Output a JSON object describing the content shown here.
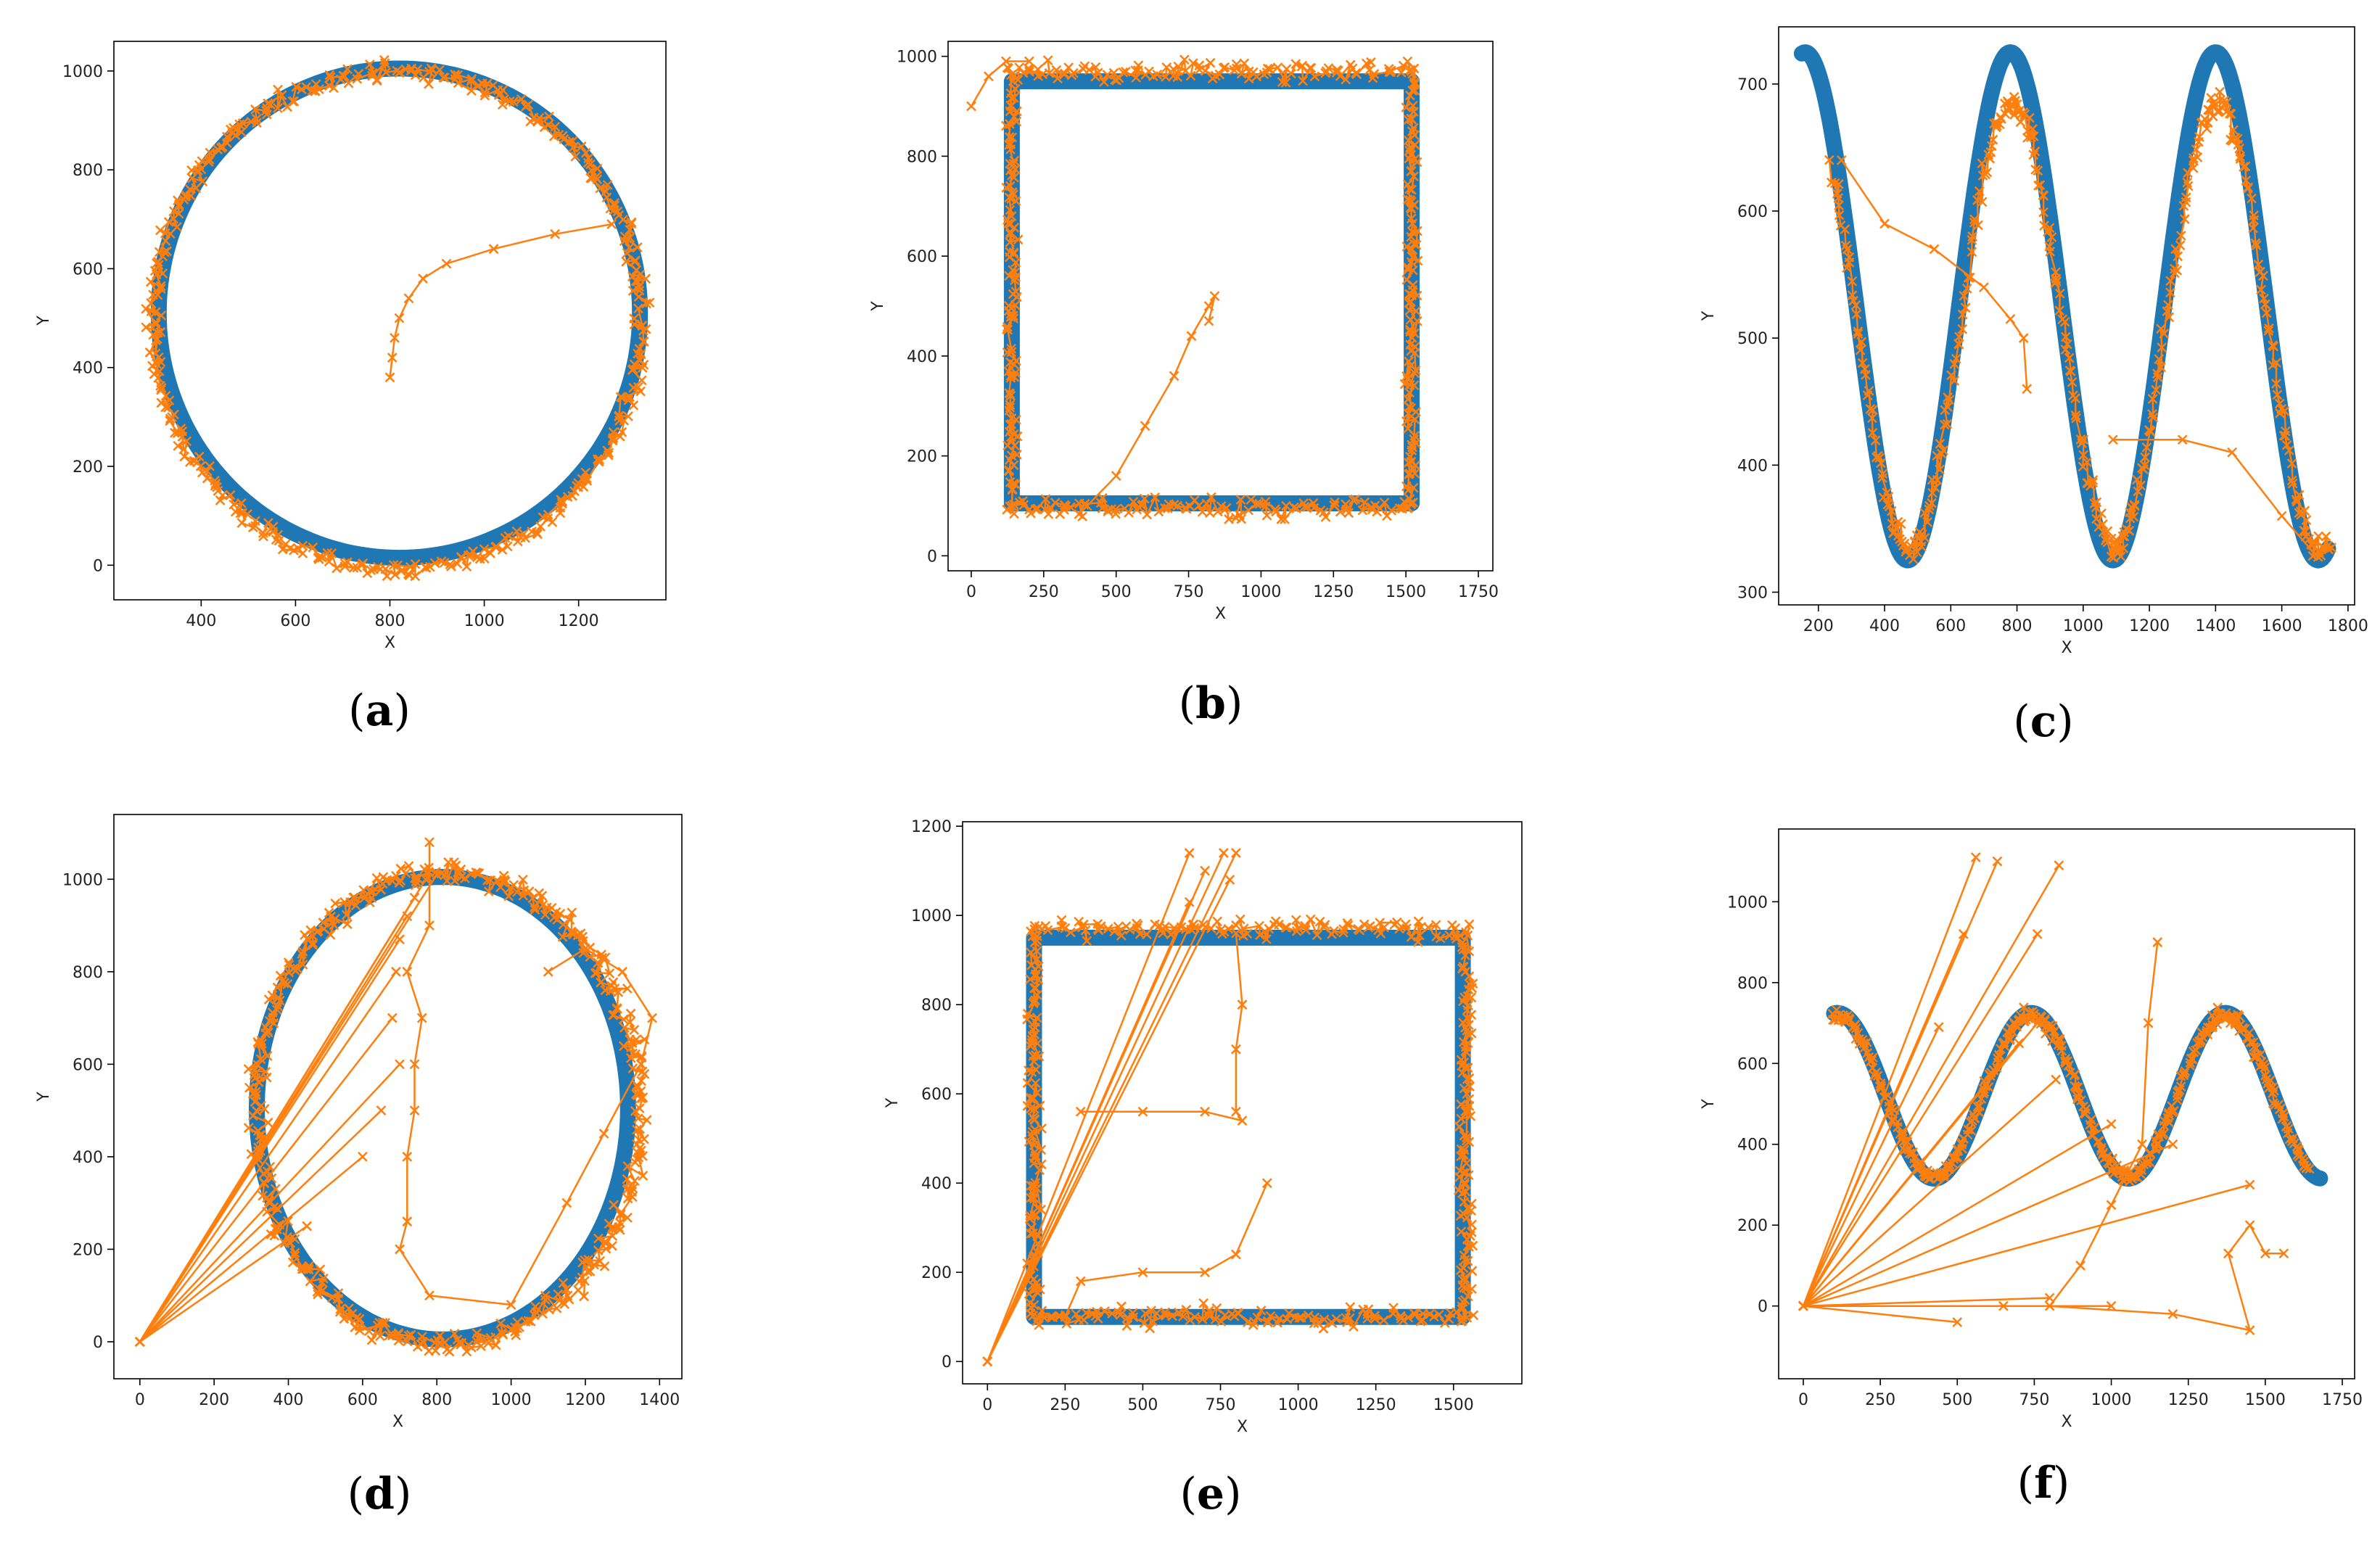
{
  "chart_data": [
    {
      "id": "a",
      "type": "scatter",
      "caption": "a",
      "xlabel": "X",
      "ylabel": "Y",
      "xlim": [
        215,
        1385
      ],
      "ylim": [
        -70,
        1060
      ],
      "xticks": [
        400,
        600,
        800,
        1000,
        1200
      ],
      "yticks": [
        0,
        200,
        400,
        600,
        800,
        1000
      ],
      "grid": false,
      "reference": {
        "shape": "ellipse",
        "center": [
          820,
          510
        ],
        "rx": 510,
        "ry": 495
      },
      "estimate": {
        "shape": "noisy-ellipse",
        "center": [
          815,
          495
        ],
        "rx": 520,
        "ry": 505,
        "noise": 22,
        "extra_path": [
          [
            1270,
            690
          ],
          [
            1150,
            670
          ],
          [
            1020,
            640
          ],
          [
            920,
            610
          ],
          [
            870,
            580
          ],
          [
            840,
            540
          ],
          [
            820,
            500
          ],
          [
            810,
            460
          ],
          [
            805,
            420
          ],
          [
            800,
            380
          ]
        ]
      }
    },
    {
      "id": "b",
      "type": "scatter",
      "caption": "b",
      "xlabel": "X",
      "ylabel": "Y",
      "xlim": [
        -80,
        1800
      ],
      "ylim": [
        -30,
        1030
      ],
      "xticks": [
        0,
        250,
        500,
        750,
        1000,
        1250,
        1500,
        1750
      ],
      "yticks": [
        0,
        200,
        400,
        600,
        800,
        1000
      ],
      "grid": false,
      "reference": {
        "shape": "rectangle",
        "x0": 140,
        "x1": 1520,
        "y0": 105,
        "y1": 950
      },
      "estimate": {
        "shape": "noisy-rectangle",
        "x0": 140,
        "x1": 1520,
        "y0": 95,
        "y1": 970,
        "noise": 25,
        "extra_path": [
          [
            0,
            900
          ],
          [
            60,
            960
          ],
          [
            120,
            990
          ],
          [
            200,
            990
          ]
        ],
        "inner_path": [
          [
            400,
            100
          ],
          [
            500,
            160
          ],
          [
            600,
            260
          ],
          [
            700,
            360
          ],
          [
            760,
            440
          ],
          [
            820,
            500
          ],
          [
            840,
            520
          ],
          [
            820,
            470
          ]
        ]
      }
    },
    {
      "id": "c",
      "type": "scatter",
      "caption": "c",
      "xlabel": "X",
      "ylabel": "Y",
      "xlim": [
        80,
        1820
      ],
      "ylim": [
        290,
        745
      ],
      "xticks": [
        200,
        400,
        600,
        800,
        1000,
        1200,
        1400,
        1600,
        1800
      ],
      "yticks": [
        300,
        400,
        500,
        600,
        700
      ],
      "grid": false,
      "reference": {
        "shape": "cosine",
        "xmin": 150,
        "xmax": 1740,
        "mid": 525,
        "amp": 200,
        "period": 620,
        "phase_x": 160
      },
      "estimate": {
        "shape": "noisy-cosine",
        "xmin": 240,
        "xmax": 1740,
        "mid": 510,
        "amp": 175,
        "period": 620,
        "phase_x": 165,
        "noise": 14,
        "extra_path": [
          [
            270,
            640
          ],
          [
            400,
            590
          ],
          [
            550,
            570
          ],
          [
            700,
            540
          ],
          [
            780,
            515
          ],
          [
            820,
            500
          ],
          [
            830,
            460
          ]
        ],
        "extra_path2": [
          [
            1090,
            420
          ],
          [
            1300,
            420
          ],
          [
            1450,
            410
          ],
          [
            1600,
            360
          ],
          [
            1700,
            330
          ],
          [
            1750,
            335
          ]
        ]
      }
    },
    {
      "id": "d",
      "type": "scatter",
      "caption": "d",
      "xlabel": "X",
      "ylabel": "Y",
      "xlim": [
        -70,
        1460
      ],
      "ylim": [
        -80,
        1140
      ],
      "xticks": [
        0,
        200,
        400,
        600,
        800,
        1000,
        1200,
        1400
      ],
      "yticks": [
        0,
        200,
        400,
        600,
        800,
        1000
      ],
      "grid": false,
      "reference": {
        "shape": "ellipse",
        "center": [
          815,
          505
        ],
        "rx": 500,
        "ry": 500
      },
      "estimate": {
        "shape": "noisy-ellipse",
        "center": [
          830,
          505
        ],
        "rx": 520,
        "ry": 510,
        "noise": 30,
        "extra_path": [
          [
            780,
            1080
          ],
          [
            780,
            900
          ],
          [
            720,
            800
          ],
          [
            760,
            700
          ],
          [
            740,
            600
          ],
          [
            740,
            500
          ],
          [
            720,
            400
          ],
          [
            720,
            260
          ],
          [
            700,
            200
          ],
          [
            780,
            100
          ],
          [
            1000,
            80
          ],
          [
            1150,
            300
          ],
          [
            1250,
            450
          ],
          [
            1350,
            600
          ],
          [
            1380,
            700
          ],
          [
            1300,
            800
          ],
          [
            1200,
            850
          ],
          [
            1100,
            800
          ]
        ],
        "fan_origin": [
          0,
          0
        ],
        "fan_targets": [
          [
            800,
            1010
          ],
          [
            770,
            1000
          ],
          [
            740,
            960
          ],
          [
            720,
            920
          ],
          [
            700,
            870
          ],
          [
            690,
            800
          ],
          [
            680,
            700
          ],
          [
            700,
            600
          ],
          [
            650,
            500
          ],
          [
            600,
            400
          ],
          [
            450,
            250
          ]
        ]
      }
    },
    {
      "id": "e",
      "type": "scatter",
      "caption": "e",
      "xlabel": "X",
      "ylabel": "Y",
      "xlim": [
        -80,
        1720
      ],
      "ylim": [
        -50,
        1210
      ],
      "xticks": [
        0,
        250,
        500,
        750,
        1000,
        1250,
        1500
      ],
      "yticks": [
        0,
        200,
        400,
        600,
        800,
        1000,
        1200
      ],
      "grid": false,
      "reference": {
        "shape": "rectangle",
        "x0": 150,
        "x1": 1530,
        "y0": 100,
        "y1": 950
      },
      "estimate": {
        "shape": "noisy-rectangle",
        "x0": 150,
        "x1": 1540,
        "y0": 100,
        "y1": 970,
        "noise": 28,
        "extra_path": [
          [
            800,
            960
          ],
          [
            820,
            800
          ],
          [
            800,
            700
          ],
          [
            800,
            560
          ],
          [
            820,
            540
          ],
          [
            700,
            560
          ],
          [
            500,
            560
          ],
          [
            300,
            560
          ]
        ],
        "inner_path": [
          [
            250,
            100
          ],
          [
            300,
            180
          ],
          [
            500,
            200
          ],
          [
            700,
            200
          ],
          [
            800,
            240
          ],
          [
            900,
            400
          ]
        ],
        "fan_origin": [
          0,
          0
        ],
        "fan_targets": [
          [
            650,
            1140
          ],
          [
            700,
            1100
          ],
          [
            760,
            1140
          ],
          [
            800,
            1140
          ],
          [
            780,
            1080
          ],
          [
            650,
            1030
          ]
        ]
      }
    },
    {
      "id": "f",
      "type": "scatter",
      "caption": "f",
      "xlabel": "X",
      "ylabel": "Y",
      "xlim": [
        -80,
        1790
      ],
      "ylim": [
        -180,
        1180
      ],
      "xticks": [
        0,
        250,
        500,
        750,
        1000,
        1250,
        1500,
        1750
      ],
      "yticks": [
        0,
        200,
        400,
        600,
        800,
        1000
      ],
      "grid": false,
      "reference": {
        "shape": "cosine",
        "xmin": 100,
        "xmax": 1680,
        "mid": 520,
        "amp": 205,
        "period": 630,
        "phase_x": 110
      },
      "estimate": {
        "shape": "noisy-cosine",
        "xmin": 100,
        "xmax": 1640,
        "mid": 520,
        "amp": 200,
        "period": 630,
        "phase_x": 110,
        "noise": 20,
        "extra_path": [
          [
            1150,
            900
          ],
          [
            1120,
            700
          ],
          [
            1100,
            400
          ],
          [
            1000,
            250
          ],
          [
            900,
            100
          ],
          [
            800,
            0
          ],
          [
            1200,
            -20
          ],
          [
            1450,
            -60
          ],
          [
            1380,
            130
          ],
          [
            1450,
            200
          ],
          [
            1500,
            130
          ],
          [
            1560,
            130
          ]
        ],
        "fan_origin": [
          0,
          0
        ],
        "fan_targets": [
          [
            560,
            1110
          ],
          [
            630,
            1100
          ],
          [
            830,
            1090
          ],
          [
            760,
            920
          ],
          [
            520,
            920
          ],
          [
            440,
            690
          ],
          [
            700,
            650
          ],
          [
            760,
            700
          ],
          [
            820,
            560
          ],
          [
            1000,
            450
          ],
          [
            1200,
            400
          ],
          [
            1450,
            300
          ],
          [
            1000,
            0
          ],
          [
            650,
            0
          ],
          [
            800,
            20
          ],
          [
            500,
            -40
          ]
        ]
      }
    }
  ]
}
